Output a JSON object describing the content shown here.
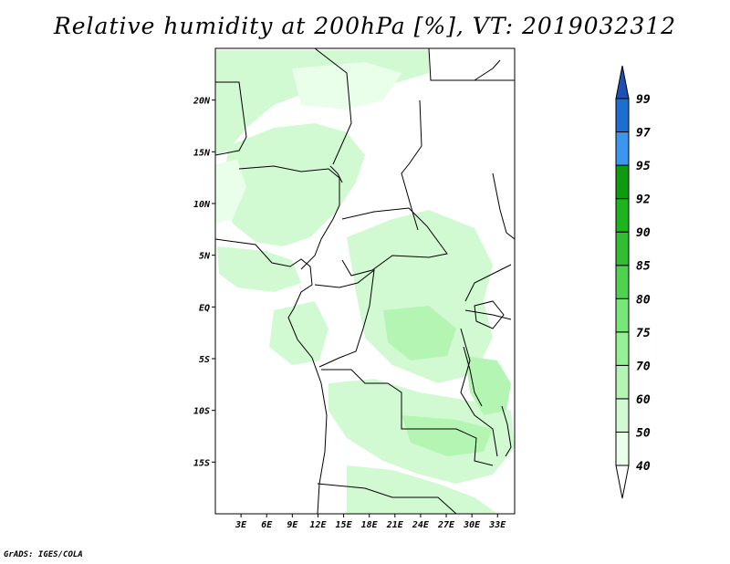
{
  "title": "Relative humidity at 200hPa [%], VT: 2019032312",
  "footer": "GrADS: IGES/COLA",
  "map": {
    "lat_ticks": [
      "20N",
      "15N",
      "10N",
      "5N",
      "EQ",
      "5S",
      "10S",
      "15S"
    ],
    "lon_ticks": [
      "3E",
      "6E",
      "9E",
      "12E",
      "15E",
      "18E",
      "21E",
      "24E",
      "27E",
      "30E",
      "33E"
    ]
  },
  "colorbar": {
    "levels": [
      "40",
      "50",
      "60",
      "70",
      "75",
      "80",
      "85",
      "90",
      "92",
      "95",
      "97",
      "99"
    ],
    "colors": [
      "#ffffff",
      "#eaffea",
      "#d2fad2",
      "#b4f5b4",
      "#96f096",
      "#78e678",
      "#50d250",
      "#32be32",
      "#1eb41e",
      "#0f9b0f",
      "#3c96f0",
      "#1e6ed2",
      "#1e50b4"
    ]
  },
  "chart_data": {
    "type": "heatmap",
    "title": "Relative humidity at 200hPa [%], VT: 2019032312",
    "xlabel": "",
    "ylabel": "",
    "x_ticks": [
      "3E",
      "6E",
      "9E",
      "12E",
      "15E",
      "18E",
      "21E",
      "24E",
      "27E",
      "30E",
      "33E"
    ],
    "y_ticks": [
      "20N",
      "15N",
      "10N",
      "5N",
      "EQ",
      "5S",
      "10S",
      "15S"
    ],
    "xlim": [
      0,
      35
    ],
    "ylim": [
      -20,
      25
    ],
    "levels": [
      40,
      50,
      60,
      70,
      75,
      80,
      85,
      90,
      92,
      95,
      97,
      99
    ]
  }
}
